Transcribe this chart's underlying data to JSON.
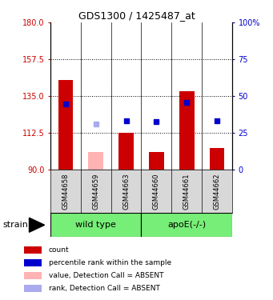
{
  "title": "GDS1300 / 1425487_at",
  "samples": [
    "GSM44658",
    "GSM44659",
    "GSM44663",
    "GSM44660",
    "GSM44661",
    "GSM44662"
  ],
  "bar_values": [
    145.0,
    null,
    112.5,
    100.5,
    138.0,
    103.0
  ],
  "bar_absent_values": [
    null,
    100.5,
    null,
    null,
    null,
    null
  ],
  "rank_values": [
    130.0,
    null,
    120.0,
    119.5,
    131.0,
    120.0
  ],
  "rank_absent_values": [
    null,
    118.0,
    null,
    null,
    null,
    null
  ],
  "ylim": [
    90,
    180
  ],
  "yticks_left": [
    90,
    112.5,
    135,
    157.5,
    180
  ],
  "yticks_right": [
    0,
    25,
    50,
    75,
    100
  ],
  "hlines": [
    157.5,
    135,
    112.5
  ],
  "left_axis_color": "#cc0000",
  "right_axis_color": "#0000cc",
  "bar_color": "#cc0000",
  "bar_absent_color": "#ffb3b3",
  "rank_color": "#0000cc",
  "rank_absent_color": "#aaaaee",
  "group_color": "#77ee77",
  "sample_bg_color": "#d8d8d8",
  "bar_width": 0.5,
  "rank_marker_size": 5
}
